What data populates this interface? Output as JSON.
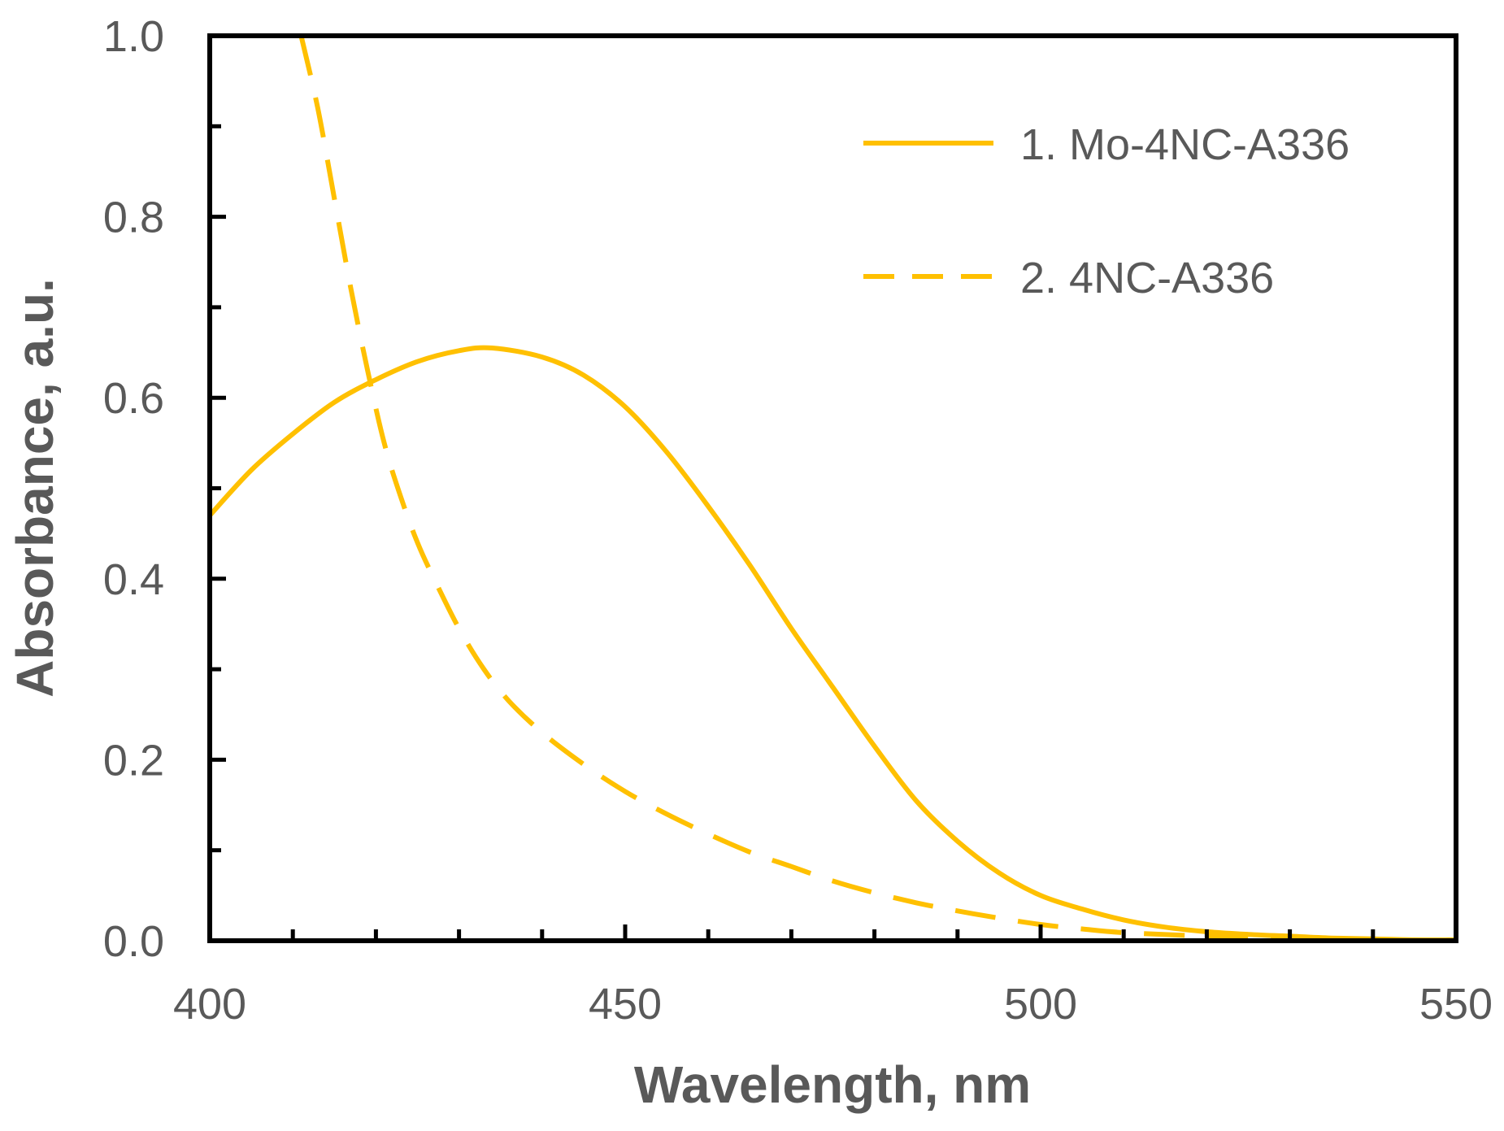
{
  "chart_data": {
    "type": "line",
    "title": "",
    "xlabel": "Wavelength, nm",
    "ylabel": "Absorbance, a.u.",
    "xlim": [
      400,
      550
    ],
    "ylim": [
      0,
      1.0
    ],
    "x_ticks": [
      400,
      450,
      500,
      550
    ],
    "x_tick_labels": [
      "400",
      "450",
      "500",
      "550"
    ],
    "x_minor_step": 10,
    "y_ticks": [
      0,
      0.2,
      0.4,
      0.6,
      0.8,
      1.0
    ],
    "y_tick_labels": [
      "0.0",
      "0.2",
      "0.4",
      "0.6",
      "0.8",
      "1.0"
    ],
    "y_minor_step": 0.1,
    "grid": false,
    "legend_position": "top-right",
    "line_color": "#FFC000",
    "series": [
      {
        "name": "1. Mo-4NC-A336",
        "style": "solid",
        "x": [
          400,
          405,
          410,
          415,
          420,
          425,
          430,
          434,
          440,
          445,
          450,
          455,
          460,
          465,
          470,
          475,
          480,
          485,
          490,
          495,
          500,
          505,
          510,
          515,
          520,
          525,
          530,
          535,
          540,
          545,
          550
        ],
        "y": [
          0.47,
          0.52,
          0.56,
          0.595,
          0.62,
          0.64,
          0.652,
          0.655,
          0.645,
          0.625,
          0.59,
          0.54,
          0.48,
          0.415,
          0.345,
          0.28,
          0.215,
          0.155,
          0.11,
          0.075,
          0.05,
          0.035,
          0.023,
          0.015,
          0.01,
          0.007,
          0.005,
          0.003,
          0.002,
          0.001,
          0.001
        ]
      },
      {
        "name": "2. 4NC-A336",
        "style": "dashed",
        "x": [
          411,
          413,
          415,
          417,
          419,
          421,
          423,
          425,
          427,
          430,
          433,
          436,
          440,
          445,
          450,
          455,
          460,
          465,
          470,
          475,
          480,
          485,
          490,
          495,
          500,
          505,
          510,
          520,
          530,
          540,
          550
        ],
        "y": [
          1.0,
          0.92,
          0.82,
          0.72,
          0.63,
          0.55,
          0.49,
          0.44,
          0.4,
          0.345,
          0.3,
          0.265,
          0.23,
          0.195,
          0.165,
          0.14,
          0.118,
          0.098,
          0.082,
          0.066,
          0.053,
          0.042,
          0.033,
          0.025,
          0.018,
          0.013,
          0.009,
          0.005,
          0.002,
          0.001,
          0.0
        ]
      }
    ]
  }
}
